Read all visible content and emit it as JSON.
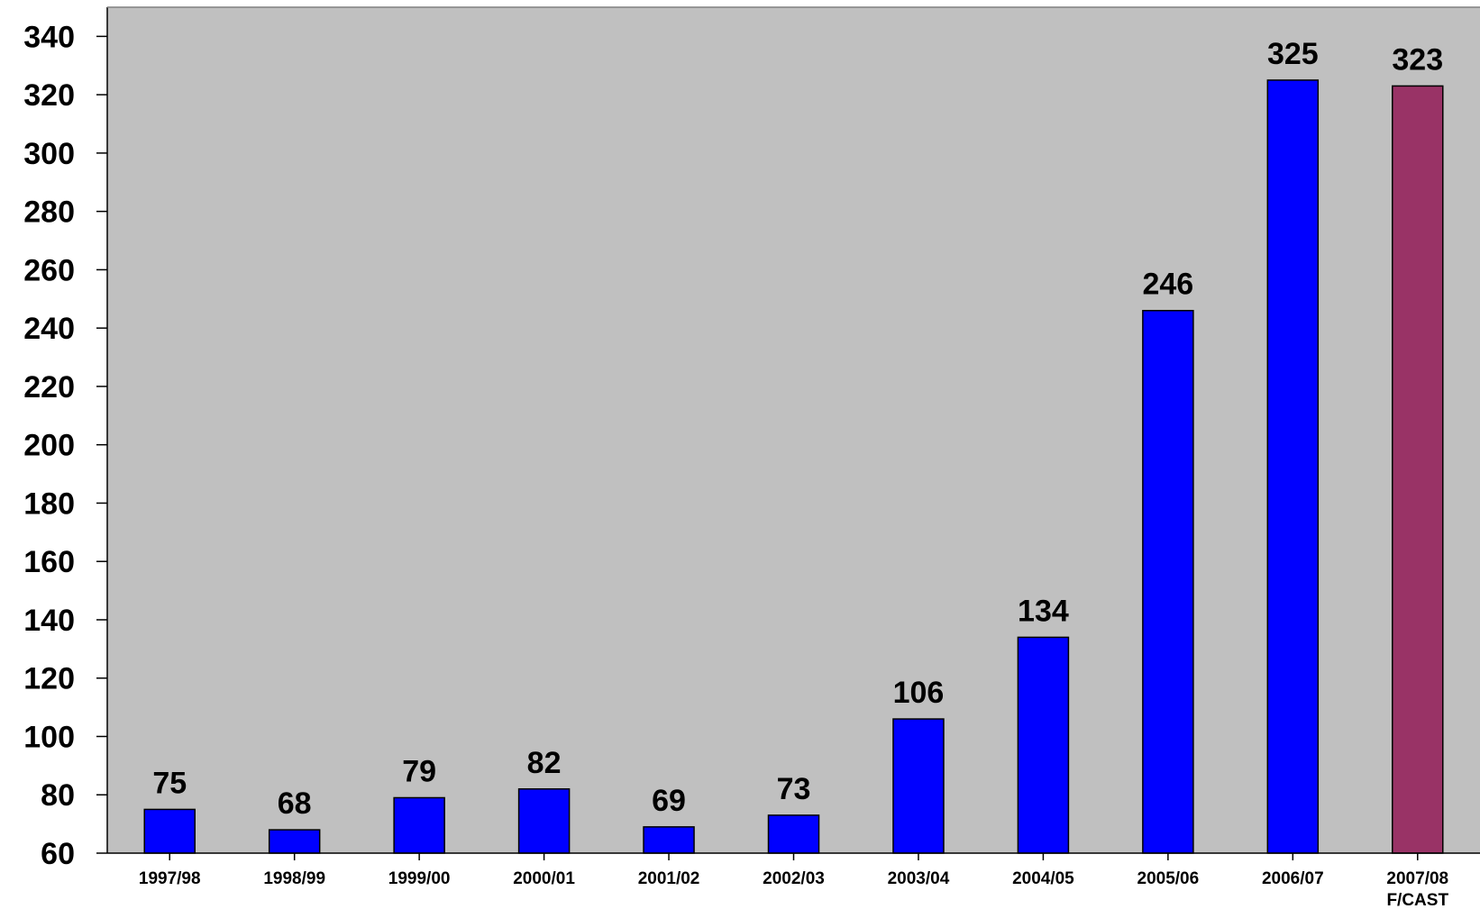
{
  "chart_data": {
    "type": "bar",
    "title": "",
    "xlabel": "",
    "ylabel": "",
    "categories": [
      [
        "1997/98"
      ],
      [
        "1998/99"
      ],
      [
        "1999/00"
      ],
      [
        "2000/01"
      ],
      [
        "2001/02"
      ],
      [
        "2002/03"
      ],
      [
        "2003/04"
      ],
      [
        "2004/05"
      ],
      [
        "2005/06"
      ],
      [
        "2006/07"
      ],
      [
        "2007/08",
        "F/CAST"
      ]
    ],
    "values": [
      75,
      68,
      79,
      82,
      69,
      73,
      106,
      134,
      246,
      325,
      323
    ],
    "value_labels": [
      "75",
      "68",
      "79",
      "82",
      "69",
      "73",
      "106",
      "134",
      "246",
      "325",
      "323"
    ],
    "bar_colors": [
      "#0000ff",
      "#0000ff",
      "#0000ff",
      "#0000ff",
      "#0000ff",
      "#0000ff",
      "#0000ff",
      "#0000ff",
      "#0000ff",
      "#0000ff",
      "#993366"
    ],
    "ylim": [
      60,
      350
    ],
    "yticks": [
      "60",
      "80",
      "100",
      "120",
      "140",
      "160",
      "180",
      "200",
      "220",
      "240",
      "260",
      "280",
      "300",
      "320",
      "340"
    ],
    "plot_background": "#c0c0c0",
    "grid": false,
    "legend": "none"
  }
}
